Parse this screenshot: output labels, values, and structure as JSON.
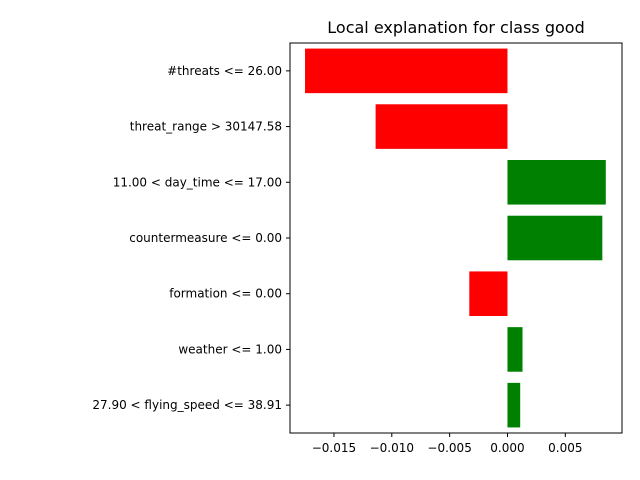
{
  "chart_data": {
    "type": "bar",
    "orientation": "horizontal",
    "title": "Local explanation for class good",
    "xlabel": "",
    "ylabel": "",
    "categories": [
      "#threats <= 26.00",
      "threat_range > 30147.58",
      "11.00 < day_time <= 17.00",
      "countermeasure <= 0.00",
      "formation <= 0.00",
      "weather <= 1.00",
      "27.90 < flying_speed <= 38.91"
    ],
    "values": [
      -0.0175,
      -0.0114,
      0.0085,
      0.0082,
      -0.0033,
      0.0013,
      0.0011
    ],
    "colors": {
      "positive": "#008000",
      "negative": "#ff0000"
    },
    "xlim": [
      -0.0188,
      0.0099
    ],
    "xticks": [
      -0.015,
      -0.01,
      -0.005,
      0.0,
      0.005
    ],
    "xtick_labels": [
      "−0.015",
      "−0.010",
      "−0.005",
      "0.000",
      "0.005"
    ],
    "grid": false,
    "legend": "none"
  }
}
